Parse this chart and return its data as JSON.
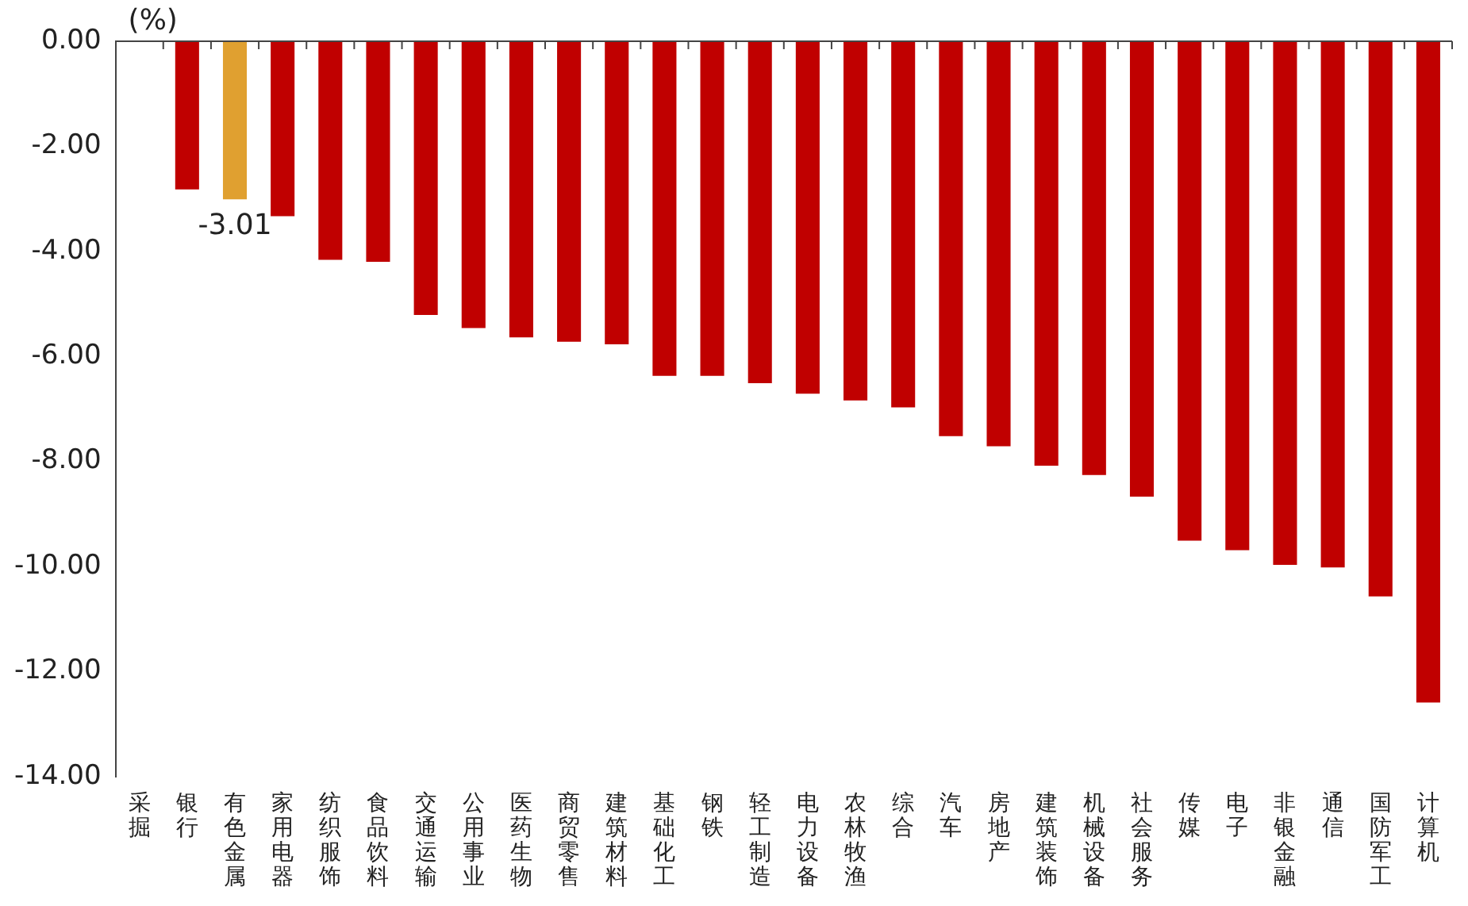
{
  "chart_data": {
    "type": "bar",
    "ylabel": "(%)",
    "categories": [
      "采掘",
      "银行",
      "有色金属",
      "家用电器",
      "纺织服饰",
      "食品饮料",
      "交通运输",
      "公用事业",
      "医药生物",
      "商贸零售",
      "建筑材料",
      "基础化工",
      "钢铁",
      "轻工制造",
      "电力设备",
      "农林牧渔",
      "综合",
      "汽车",
      "房地产",
      "建筑装饰",
      "机械设备",
      "社会服务",
      "传媒",
      "电子",
      "非银金融",
      "通信",
      "国防军工",
      "计算机"
    ],
    "values": [
      null,
      -2.82,
      -3.01,
      -3.33,
      -4.16,
      -4.2,
      -5.21,
      -5.46,
      -5.64,
      -5.72,
      -5.77,
      -6.37,
      -6.37,
      -6.51,
      -6.71,
      -6.84,
      -6.97,
      -7.52,
      -7.71,
      -8.08,
      -8.26,
      -8.67,
      -9.51,
      -9.69,
      -9.97,
      -10.02,
      -10.57,
      -12.59
    ],
    "colors": [
      "#c00000",
      "#c00000",
      "#e0a030",
      "#c00000",
      "#c00000",
      "#c00000",
      "#c00000",
      "#c00000",
      "#c00000",
      "#c00000",
      "#c00000",
      "#c00000",
      "#c00000",
      "#c00000",
      "#c00000",
      "#c00000",
      "#c00000",
      "#c00000",
      "#c00000",
      "#c00000",
      "#c00000",
      "#c00000",
      "#c00000",
      "#c00000",
      "#c00000",
      "#c00000",
      "#c00000",
      "#c00000"
    ],
    "value_labels": [
      null,
      null,
      "-3.01",
      null,
      null,
      null,
      null,
      null,
      null,
      null,
      null,
      null,
      null,
      null,
      null,
      null,
      null,
      null,
      null,
      null,
      null,
      null,
      null,
      null,
      null,
      null,
      null,
      null
    ],
    "ylim": [
      -14,
      0
    ],
    "yticks": [
      {
        "value": 0,
        "label": "0.00"
      },
      {
        "value": -2,
        "label": "-2.00"
      },
      {
        "value": -4,
        "label": "-4.00"
      },
      {
        "value": -6,
        "label": "-6.00"
      },
      {
        "value": -8,
        "label": "-8.00"
      },
      {
        "value": -10,
        "label": "-10.00"
      },
      {
        "value": -12,
        "label": "-12.00"
      },
      {
        "value": -14,
        "label": "-14.00"
      }
    ],
    "grid": false,
    "legend": false
  }
}
